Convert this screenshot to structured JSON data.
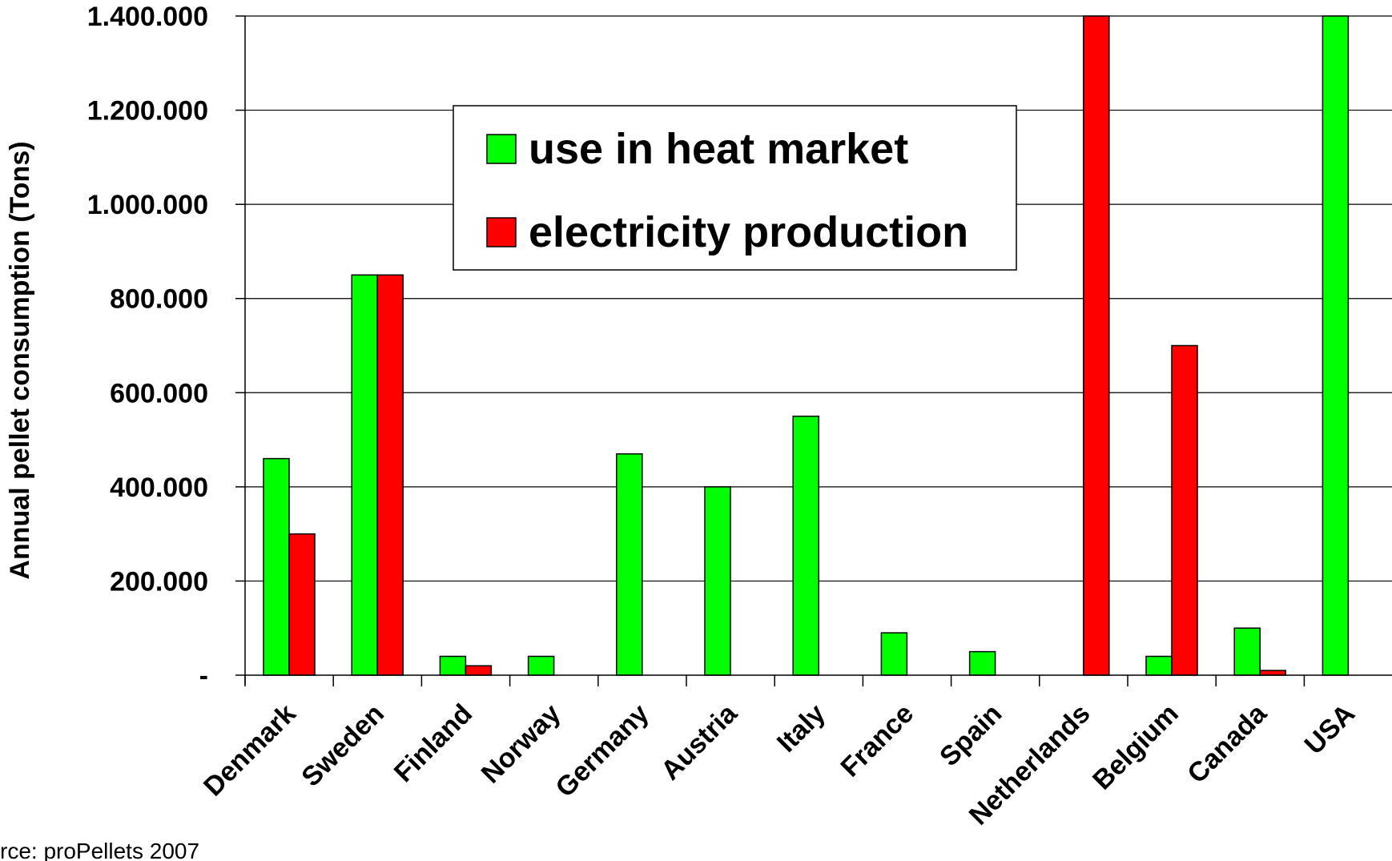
{
  "chart_data": {
    "type": "bar",
    "ylabel": "Annual pellet consumption (Tons)",
    "ylim": [
      0,
      1400000
    ],
    "y_ticks": [
      {
        "value": 0,
        "label": "-"
      },
      {
        "value": 200000,
        "label": "200.000"
      },
      {
        "value": 400000,
        "label": "400.000"
      },
      {
        "value": 600000,
        "label": "600.000"
      },
      {
        "value": 800000,
        "label": "800.000"
      },
      {
        "value": 1000000,
        "label": "1.000.000"
      },
      {
        "value": 1200000,
        "label": "1.200.000"
      },
      {
        "value": 1400000,
        "label": "1.400.000"
      }
    ],
    "categories": [
      "Denmark",
      "Sweden",
      "Finland",
      "Norway",
      "Germany",
      "Austria",
      "Italy",
      "France",
      "Spain",
      "Netherlands",
      "Belgium",
      "Canada",
      "USA"
    ],
    "series": [
      {
        "name": "use in heat market",
        "color": "#00ff00",
        "values": [
          460000,
          850000,
          40000,
          40000,
          470000,
          400000,
          550000,
          90000,
          50000,
          0,
          40000,
          100000,
          1400000
        ]
      },
      {
        "name": "electricity production",
        "color": "#ff0000",
        "values": [
          300000,
          850000,
          20000,
          0,
          0,
          0,
          0,
          0,
          0,
          1400000,
          700000,
          10000,
          0
        ]
      }
    ],
    "grid": true,
    "legend_position": "top-center",
    "source": "rce: proPellets 2007"
  }
}
